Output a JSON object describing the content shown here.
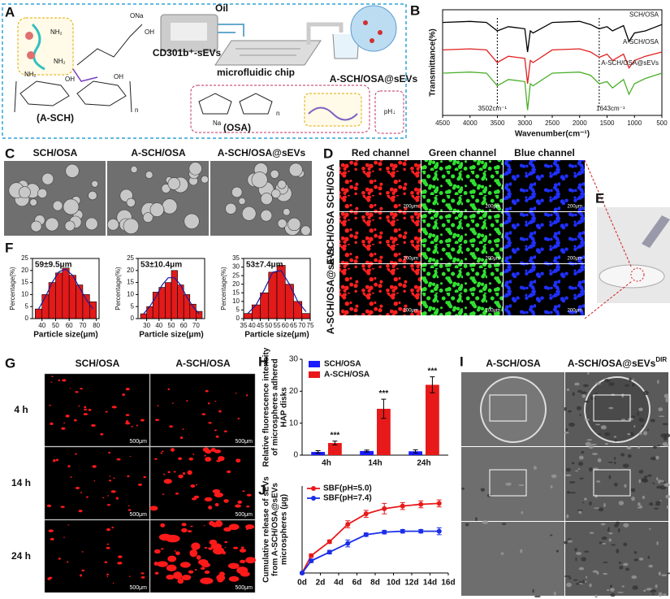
{
  "letters": [
    "A",
    "B",
    "C",
    "D",
    "E",
    "F",
    "G",
    "H",
    "I",
    "J"
  ],
  "scheme": {
    "oil": "Oil",
    "sevs": "CD301b⁺-sEVs",
    "chip": "microfluidic chip",
    "product": "A-SCH/OSA@sEVs",
    "asch": "(A-SCH)",
    "osa": "(OSA)",
    "ph": "pH↓",
    "nh2": "NH₂",
    "oh": "OH",
    "ona": "ONa",
    "na": "Na",
    "n": "n"
  },
  "sem": {
    "titles": [
      "SCH/OSA",
      "A-SCH/OSA",
      "A-SCH/OSA@sEVs"
    ]
  },
  "fluorescence": {
    "columns": [
      "Red channel",
      "Green channel",
      "Blue channel"
    ],
    "rows": [
      "SCH/OSA",
      "A-SCH/OSA",
      "A-SCH/OSA@sEVs"
    ],
    "scale": "200μm"
  },
  "adhesion_images": {
    "columns": [
      "SCH/OSA",
      "A-SCH/OSA"
    ],
    "rows": [
      "4 h",
      "14 h",
      "24 h"
    ],
    "scale": "500μm"
  },
  "sem_detail": {
    "columns": [
      "A-SCH/OSA",
      "A-SCH/OSA@sEVs"
    ],
    "superscript": "DIR"
  },
  "chart_data": [
    {
      "type": "line",
      "xlabel": "Wavenumber(cm⁻¹)",
      "ylabel": "Transmittance(%)",
      "x": [
        4500,
        4000,
        3700,
        3502,
        3300,
        3000,
        2950,
        2900,
        2850,
        2500,
        2000,
        1800,
        1643,
        1500,
        1400,
        1200,
        1100,
        1000,
        800,
        500
      ],
      "xlim": [
        4500,
        500
      ],
      "xticks": [
        4500,
        4000,
        3500,
        3000,
        2500,
        2000,
        1500,
        1000,
        500
      ],
      "ylim": [
        0,
        100
      ],
      "series": [
        {
          "name": "SCH/OSA",
          "color": "#000000",
          "values": [
            88,
            89,
            88,
            80,
            84,
            82,
            60,
            80,
            78,
            88,
            89,
            86,
            82,
            84,
            80,
            85,
            70,
            78,
            80,
            86
          ]
        },
        {
          "name": "A-SCH/OSA",
          "color": "#e02020",
          "values": [
            62,
            63,
            62,
            50,
            56,
            54,
            30,
            52,
            50,
            62,
            63,
            60,
            55,
            58,
            52,
            58,
            45,
            52,
            56,
            60
          ]
        },
        {
          "name": "A-SCH/OSA@sEVs",
          "color": "#4caf2a",
          "values": [
            40,
            41,
            40,
            28,
            34,
            32,
            5,
            30,
            28,
            40,
            41,
            38,
            30,
            32,
            26,
            34,
            20,
            30,
            35,
            40
          ]
        }
      ],
      "annotations": [
        {
          "text": "3502cm⁻¹",
          "x": 3502
        },
        {
          "text": "1643cm⁻¹",
          "x": 1643
        }
      ]
    },
    {
      "type": "histogram",
      "title": "59±9.5μm",
      "xlabel": "Particle size(μm)",
      "ylabel": "Percentage(%)",
      "color": "#e21a1a",
      "curve_color": "#1a1a9a",
      "bins": [
        35,
        40,
        45,
        50,
        55,
        60,
        65,
        70,
        75,
        80
      ],
      "values": [
        4,
        10,
        15,
        19,
        21,
        18,
        14,
        10,
        7
      ],
      "curve": {
        "x": [
          37.5,
          42.5,
          47.5,
          52.5,
          57.5,
          62.5,
          67.5,
          72.5,
          77.5
        ],
        "values": [
          4,
          9,
          15,
          19.5,
          20.5,
          18,
          13,
          8,
          4
        ]
      },
      "xlim": [
        33,
        82
      ],
      "xticks": [
        40,
        50,
        60,
        70,
        80
      ],
      "ylim": [
        0,
        25
      ],
      "yticks": [
        0,
        5,
        10,
        15,
        20,
        25
      ]
    },
    {
      "type": "histogram",
      "title": "53±10.4μm",
      "xlabel": "Particle size(μm)",
      "ylabel": "Percentage(%)",
      "color": "#e21a1a",
      "curve_color": "#1a1a9a",
      "bins": [
        25,
        30,
        35,
        40,
        45,
        50,
        55,
        60,
        65,
        70,
        75
      ],
      "values": [
        2,
        5,
        11,
        13,
        15,
        20,
        14,
        10,
        6,
        3
      ],
      "curve": {
        "x": [
          27.5,
          32.5,
          37.5,
          42.5,
          47.5,
          52.5,
          57.5,
          62.5,
          67.5,
          72.5
        ],
        "values": [
          2,
          5,
          9,
          14,
          17,
          17,
          14,
          9,
          5,
          2
        ]
      },
      "xlim": [
        23,
        77
      ],
      "xticks": [
        30,
        40,
        50,
        60,
        70
      ],
      "ylim": [
        0,
        25
      ],
      "yticks": [
        0,
        5,
        10,
        15,
        20,
        25
      ]
    },
    {
      "type": "histogram",
      "title": "53±7.4μm",
      "xlabel": "Particle size(μm)",
      "ylabel": "Percentage(%)",
      "color": "#e21a1a",
      "curve_color": "#1a1a9a",
      "bins": [
        35,
        40,
        45,
        50,
        55,
        60,
        65,
        70,
        75
      ],
      "values": [
        3,
        8,
        15,
        27,
        31,
        20,
        10,
        3
      ],
      "curve": {
        "x": [
          37.5,
          42.5,
          47.5,
          52.5,
          57.5,
          62.5,
          67.5,
          72.5
        ],
        "values": [
          3,
          8,
          17,
          27,
          28,
          20,
          10,
          4
        ]
      },
      "xlim": [
        35,
        75
      ],
      "xticks": [
        35,
        40,
        45,
        50,
        55,
        60,
        65,
        70,
        75
      ],
      "ylim": [
        0,
        35
      ],
      "yticks": [
        0,
        5,
        10,
        15,
        20,
        25,
        30,
        35
      ]
    },
    {
      "type": "bar",
      "categories": [
        "4h",
        "14h",
        "24h"
      ],
      "ylabel": [
        "Relative fluorescence intensity",
        "of microspheres adhered",
        "HAP disks"
      ],
      "series": [
        {
          "name": "SCH/OSA",
          "color": "#1a1aff",
          "values": [
            1,
            1.3,
            1.2
          ],
          "errors": [
            0.4,
            0.3,
            0.5
          ]
        },
        {
          "name": "A-SCH/OSA",
          "color": "#e8191a",
          "values": [
            3.8,
            14.5,
            22
          ],
          "errors": [
            0.6,
            3,
            2.5
          ]
        }
      ],
      "significance": [
        "***",
        "***",
        "***"
      ],
      "ylim": [
        0,
        30
      ],
      "yticks": [
        0,
        10,
        20,
        30
      ]
    },
    {
      "type": "line",
      "ylabel": [
        "Cumulative release of sEVs",
        "from A-SCH/OSA@sEVs",
        "microspheres (μg)"
      ],
      "x": [
        0,
        1,
        3,
        5,
        7,
        9,
        11,
        13,
        15
      ],
      "series": [
        {
          "name": "SBF(pH=5.0)",
          "color": "#e8191a",
          "values": [
            0,
            10,
            18,
            28,
            34,
            37,
            38.5,
            39.5,
            40
          ],
          "errors": [
            0.5,
            1,
            1,
            2,
            2,
            3,
            2,
            2,
            2
          ]
        },
        {
          "name": "SBF(pH=7.4)",
          "color": "#1a2ee8",
          "values": [
            0,
            7,
            12,
            17,
            22,
            23.5,
            24,
            24,
            24
          ],
          "errors": [
            0.5,
            1,
            1,
            2,
            1,
            1,
            1,
            1,
            2
          ]
        }
      ],
      "xlim": [
        0,
        16
      ],
      "ylim": [
        0,
        50
      ],
      "xticks": [
        {
          "value": 0,
          "label": "0d"
        },
        {
          "value": 2,
          "label": "2d"
        },
        {
          "value": 4,
          "label": "4d"
        },
        {
          "value": 6,
          "label": "6d"
        },
        {
          "value": 8,
          "label": "8d"
        },
        {
          "value": 10,
          "label": "10d"
        },
        {
          "value": 12,
          "label": "12d"
        },
        {
          "value": 14,
          "label": "14d"
        },
        {
          "value": 16,
          "label": "16d"
        }
      ]
    }
  ]
}
